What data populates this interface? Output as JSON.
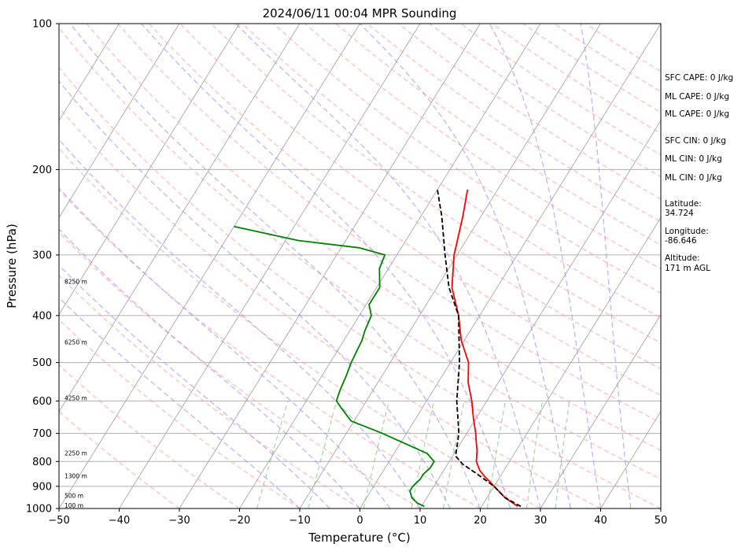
{
  "chart_data": {
    "type": "line",
    "title": "2024/06/11 00:04 MPR Sounding",
    "xlabel": "Temperature (°C)",
    "ylabel": "Pressure (hPa)",
    "xlim": [
      -50,
      50
    ],
    "ylim": [
      1000,
      100
    ],
    "y_scale": "log",
    "grid": true,
    "x_ticks": [
      "−50",
      "−40",
      "−30",
      "−20",
      "−10",
      "0",
      "10",
      "20",
      "30",
      "40",
      "50"
    ],
    "y_ticks": [
      "100",
      "200",
      "300",
      "400",
      "500",
      "600",
      "700",
      "800",
      "900",
      "1000"
    ],
    "series": [
      {
        "role": "temperature",
        "color": "#ff0000",
        "points": [
          [
            26.0,
            990
          ],
          [
            23.0,
            950
          ],
          [
            20.0,
            900
          ],
          [
            17.5,
            860
          ],
          [
            16.0,
            835
          ],
          [
            14.5,
            800
          ],
          [
            13.5,
            760
          ],
          [
            12.5,
            730
          ],
          [
            11.5,
            700
          ],
          [
            9.5,
            650
          ],
          [
            7.5,
            600
          ],
          [
            5.0,
            550
          ],
          [
            3.0,
            500
          ],
          [
            -0.5,
            450
          ],
          [
            -3.5,
            400
          ],
          [
            -7.5,
            350
          ],
          [
            -10.5,
            300
          ],
          [
            -13.0,
            250
          ],
          [
            -15.0,
            220
          ]
        ]
      },
      {
        "role": "parcel",
        "color": "#000000",
        "points": [
          [
            26.5,
            990
          ],
          [
            23.0,
            950
          ],
          [
            20.0,
            900
          ],
          [
            16.0,
            850
          ],
          [
            12.5,
            810
          ],
          [
            10.5,
            780
          ],
          [
            8.7,
            700
          ],
          [
            5.0,
            600
          ],
          [
            1.5,
            500
          ],
          [
            -3.5,
            400
          ],
          [
            -8.0,
            350
          ],
          [
            -12.0,
            300
          ],
          [
            -16.5,
            250
          ],
          [
            -20.0,
            220
          ]
        ]
      },
      {
        "role": "dewpoint",
        "color": "#008000",
        "points": [
          [
            10.5,
            990
          ],
          [
            9.0,
            975
          ],
          [
            7.5,
            950
          ],
          [
            6.5,
            920
          ],
          [
            6.5,
            900
          ],
          [
            7.0,
            870
          ],
          [
            7.0,
            850
          ],
          [
            7.5,
            825
          ],
          [
            7.5,
            800
          ],
          [
            5.5,
            770
          ],
          [
            -4.0,
            700
          ],
          [
            -10.5,
            660
          ],
          [
            -13.5,
            620
          ],
          [
            -15.0,
            600
          ],
          [
            -15.5,
            570
          ],
          [
            -16.0,
            530
          ],
          [
            -16.5,
            500
          ],
          [
            -17.0,
            450
          ],
          [
            -17.5,
            430
          ],
          [
            -18.0,
            400
          ],
          [
            -19.5,
            380
          ],
          [
            -19.5,
            350
          ],
          [
            -21.5,
            320
          ],
          [
            -22.0,
            300
          ],
          [
            -27.0,
            290
          ],
          [
            -38.0,
            280
          ],
          [
            -50.0,
            262
          ]
        ]
      }
    ],
    "altitude_labels": [
      {
        "text": "100 m",
        "p": 1000
      },
      {
        "text": "500 m",
        "p": 955
      },
      {
        "text": "1300 m",
        "p": 870
      },
      {
        "text": "2250 m",
        "p": 780
      },
      {
        "text": "4250 m",
        "p": 600
      },
      {
        "text": "6250 m",
        "p": 460
      },
      {
        "text": "8250 m",
        "p": 345
      }
    ]
  },
  "sidebar": {
    "lines": [
      "SFC CAPE: 0 J/kg",
      "ML CAPE: 0 J/kg",
      "ML CAPE: 0 J/kg",
      "SFC CIN: 0 J/kg",
      "ML CIN: 0 J/kg",
      "ML CIN: 0 J/kg",
      "Latitude:",
      "34.724",
      "Longitude:",
      "-86.646",
      "Altitude:",
      "171 m AGL"
    ]
  }
}
